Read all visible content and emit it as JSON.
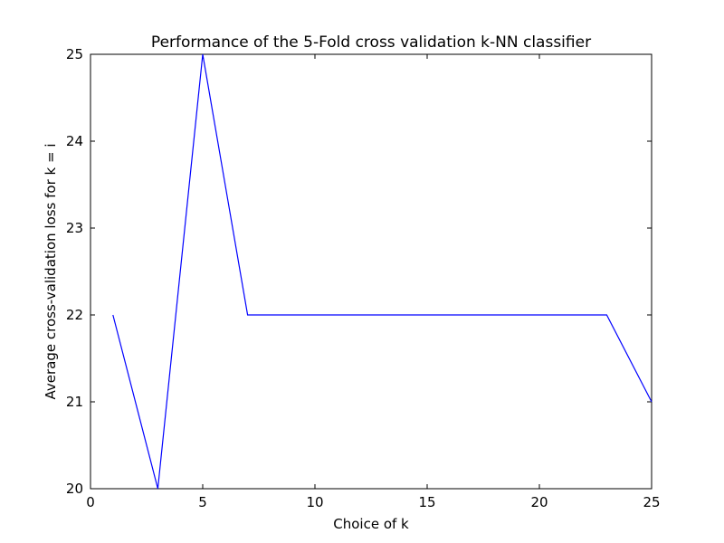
{
  "chart_data": {
    "type": "line",
    "title": "Performance of the 5-Fold cross validation k-NN classifier",
    "xlabel": "Choice of k",
    "ylabel": "Average cross-validation loss for k = i",
    "xlim": [
      0,
      25
    ],
    "ylim": [
      20,
      25
    ],
    "xticks": [
      0,
      5,
      10,
      15,
      20,
      25
    ],
    "yticks": [
      20,
      21,
      22,
      23,
      24,
      25
    ],
    "grid": false,
    "series": [
      {
        "color": "#0000ff",
        "x": [
          1,
          3,
          5,
          7,
          9,
          11,
          13,
          15,
          17,
          19,
          21,
          23,
          25
        ],
        "y": [
          22,
          20,
          25,
          22,
          22,
          22,
          22,
          22,
          22,
          22,
          22,
          22,
          21
        ]
      }
    ]
  }
}
